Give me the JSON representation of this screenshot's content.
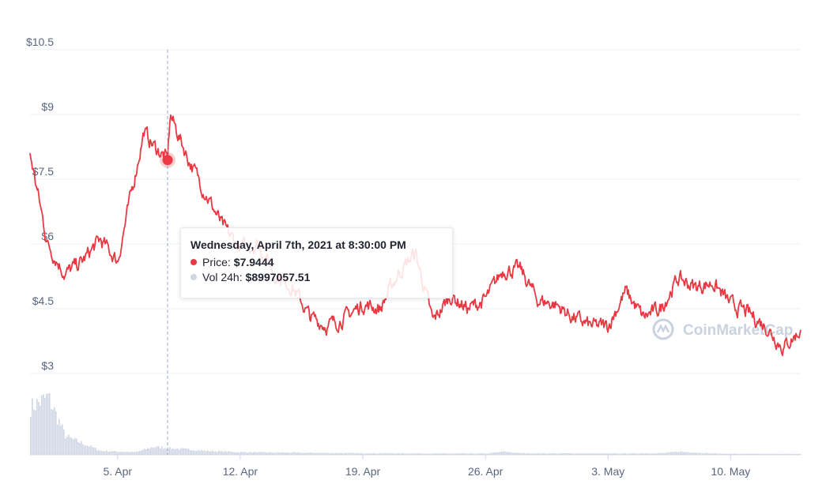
{
  "chart_data": {
    "type": "line",
    "title": "",
    "xlabel": "",
    "ylabel": "",
    "ylim": [
      3,
      10.5
    ],
    "y_ticks": [
      "$3",
      "$4.5",
      "$6",
      "$7.5",
      "$9",
      "$10.5"
    ],
    "x_ticks": [
      "5. Apr",
      "12. Apr",
      "19. Apr",
      "26. Apr",
      "3. May",
      "10. May"
    ],
    "grid": true,
    "series": [
      {
        "name": "Price",
        "color": "#ea3943",
        "x": [
          "2021-03-31",
          "2021-04-01",
          "2021-04-02",
          "2021-04-03",
          "2021-04-04",
          "2021-04-05",
          "2021-04-06",
          "2021-04-06T12:00",
          "2021-04-07",
          "2021-04-07T20:30",
          "2021-04-08",
          "2021-04-09",
          "2021-04-10",
          "2021-04-11",
          "2021-04-12",
          "2021-04-13",
          "2021-04-14",
          "2021-04-15",
          "2021-04-16",
          "2021-04-17",
          "2021-04-18",
          "2021-04-19",
          "2021-04-20",
          "2021-04-21",
          "2021-04-22",
          "2021-04-23",
          "2021-04-24",
          "2021-04-25",
          "2021-04-26",
          "2021-04-27",
          "2021-04-28",
          "2021-04-29",
          "2021-04-30",
          "2021-05-01",
          "2021-05-02",
          "2021-05-03",
          "2021-05-04",
          "2021-05-05",
          "2021-05-06",
          "2021-05-07",
          "2021-05-08",
          "2021-05-09",
          "2021-05-10",
          "2021-05-11",
          "2021-05-12",
          "2021-05-13",
          "2021-05-14"
        ],
        "values": [
          8.1,
          6.0,
          5.3,
          5.6,
          6.1,
          5.6,
          7.6,
          8.6,
          8.3,
          7.9444,
          9.0,
          8.0,
          7.2,
          6.4,
          5.9,
          6.0,
          5.3,
          5.0,
          4.3,
          4.1,
          4.3,
          4.6,
          4.5,
          5.3,
          5.8,
          4.2,
          4.8,
          4.5,
          4.7,
          5.4,
          5.4,
          4.7,
          4.6,
          4.3,
          4.1,
          4.1,
          4.9,
          4.3,
          4.5,
          5.2,
          5.0,
          5.1,
          4.6,
          4.4,
          4.1,
          3.6,
          4.0
        ]
      },
      {
        "name": "Vol 24h",
        "color": "#cfd6e4",
        "x": [
          "2021-03-31",
          "2021-04-01",
          "2021-04-02",
          "2021-04-04",
          "2021-04-06",
          "2021-04-07",
          "2021-04-08",
          "2021-04-10",
          "2021-04-12",
          "2021-04-15",
          "2021-04-19",
          "2021-04-23",
          "2021-04-26",
          "2021-04-27",
          "2021-04-28",
          "2021-05-03",
          "2021-05-06",
          "2021-05-07",
          "2021-05-09",
          "2021-05-10",
          "2021-05-14"
        ],
        "values": [
          1.8,
          2.2,
          0.7,
          0.15,
          0.1,
          0.3,
          0.25,
          0.15,
          0.1,
          0.08,
          0.06,
          0.05,
          0.05,
          0.12,
          0.06,
          0.05,
          0.06,
          0.12,
          0.05,
          0.04,
          0.03
        ]
      }
    ]
  },
  "tooltip": {
    "title": "Wednesday, April 7th, 2021 at 8:30:00 PM",
    "price_label": "Price:",
    "price_value": "$7.9444",
    "volume_label": "Vol 24h:",
    "volume_value": "$8997057.51",
    "price_color": "#ea3943",
    "volume_color": "#cfd6e4"
  },
  "watermark": {
    "text": "CoinMarketCap"
  }
}
